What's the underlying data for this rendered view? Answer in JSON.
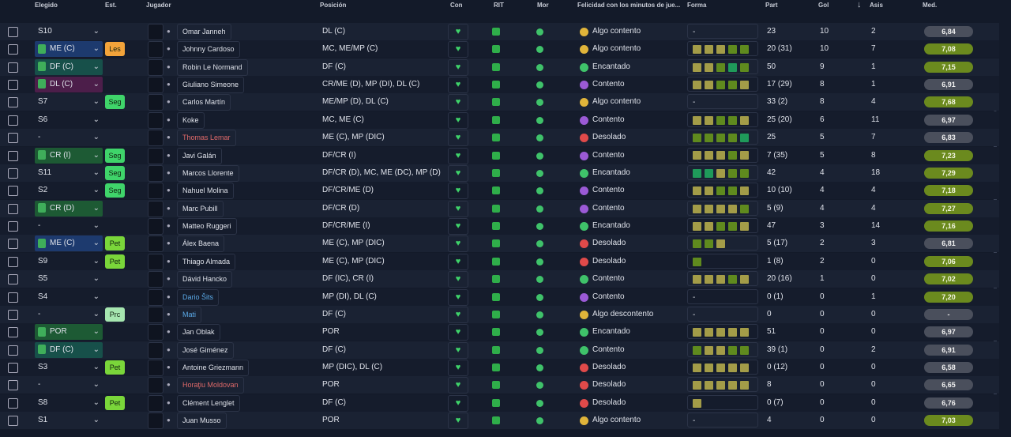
{
  "headers": [
    "Elegido",
    "Est.",
    "Jugador",
    "Posición",
    "Con",
    "RIT",
    "Mor",
    "Felicidad con los minutos de jue...",
    "Forma",
    "Part",
    "Gol",
    "Asis",
    "Med."
  ],
  "rows": [
    {
      "sel": "S10",
      "name": "Omar Janneh",
      "pos": "DL (C)",
      "fel": "Algo contento",
      "fel_color": "#e0b43a",
      "form": "-",
      "part": "23",
      "gol": 10,
      "asis": 2,
      "med": "6,84"
    },
    {
      "sel": "ME (C)",
      "sel_color": "#1d3a6e",
      "est": "Les",
      "est_color": "#f2a33a",
      "name": "Johnny Cardoso",
      "pos": "MC, ME/MP (C)",
      "fel": "Algo contento",
      "fel_color": "#e0b43a",
      "form": [
        "#a39c48",
        "#a39c48",
        "#a39c48",
        "#5f8a1e",
        "#5f8a1e"
      ],
      "part": "20 (31)",
      "gol": 10,
      "asis": 7,
      "med": "7,08"
    },
    {
      "sel": "DF (C)",
      "sel_color": "#17504a",
      "name": "Robin Le Normand",
      "pos": "DF (C)",
      "fel": "Encantado",
      "fel_color": "#3fc26a",
      "form": [
        "#a39c48",
        "#a39c48",
        "#5f8a1e",
        "#1f9a5a",
        "#5f8a1e"
      ],
      "part": "50",
      "gol": 9,
      "asis": 1,
      "med": "7,15"
    },
    {
      "sel": "DL (C)",
      "sel_color": "#4c1e4a",
      "name": "Giuliano Simeone",
      "pos": "CR/ME (D), MP (DI), DL (C)",
      "fel": "Contento",
      "fel_color": "#9b5ad6",
      "form": [
        "#a39c48",
        "#a39c48",
        "#5f8a1e",
        "#5f8a1e",
        "#a39c48"
      ],
      "part": "17 (29)",
      "gol": 8,
      "asis": 1,
      "med": "6,91"
    },
    {
      "sel": "S7",
      "est": "Seg",
      "est_color": "#3fd46a",
      "name": "Carlos Martín",
      "pos": "ME/MP (D), DL (C)",
      "fel": "Algo contento",
      "fel_color": "#e0b43a",
      "form": "-",
      "part": "33 (2)",
      "gol": 8,
      "asis": 4,
      "med": "7,68"
    },
    {
      "sel": "S6",
      "name": "Koke",
      "pos": "MC, ME (C)",
      "fel": "Contento",
      "fel_color": "#9b5ad6",
      "form": [
        "#a39c48",
        "#a39c48",
        "#5f8a1e",
        "#5f8a1e",
        "#a39c48"
      ],
      "part": "25 (20)",
      "gol": 6,
      "asis": 11,
      "med": "6,97"
    },
    {
      "sel": "-",
      "name": "Thomas Lemar",
      "name_color": "#e06a6a",
      "pos": "ME (C), MP (DIC)",
      "fel": "Desolado",
      "fel_color": "#e04a4a",
      "form": [
        "#5f8a1e",
        "#5f8a1e",
        "#5f8a1e",
        "#5f8a1e",
        "#1f9a5a"
      ],
      "part": "25",
      "gol": 5,
      "asis": 7,
      "med": "6,83"
    },
    {
      "sel": "CR (I)",
      "sel_color": "#1d5a34",
      "est": "Seg",
      "est_color": "#3fd46a",
      "name": "Javi Galán",
      "pos": "DF/CR (I)",
      "fel": "Contento",
      "fel_color": "#9b5ad6",
      "form": [
        "#a39c48",
        "#a39c48",
        "#a39c48",
        "#5f8a1e",
        "#a39c48"
      ],
      "part": "7 (35)",
      "gol": 5,
      "asis": 8,
      "med": "7,23"
    },
    {
      "sel": "S11",
      "est": "Seg",
      "est_color": "#3fd46a",
      "name": "Marcos Llorente",
      "pos": "DF/CR (D), MC, ME (DC), MP (D)",
      "fel": "Encantado",
      "fel_color": "#3fc26a",
      "form": [
        "#1f9a5a",
        "#1f9a5a",
        "#a39c48",
        "#5f8a1e",
        "#5f8a1e"
      ],
      "part": "42",
      "gol": 4,
      "asis": 18,
      "med": "7,29"
    },
    {
      "sel": "S2",
      "est": "Seg",
      "est_color": "#3fd46a",
      "name": "Nahuel Molina",
      "pos": "DF/CR/ME (D)",
      "fel": "Contento",
      "fel_color": "#9b5ad6",
      "form": [
        "#a39c48",
        "#a39c48",
        "#5f8a1e",
        "#5f8a1e",
        "#a39c48"
      ],
      "part": "10 (10)",
      "gol": 4,
      "asis": 4,
      "med": "7,18"
    },
    {
      "sel": "CR (D)",
      "sel_color": "#1d5a34",
      "name": "Marc Pubill",
      "pos": "DF/CR (D)",
      "fel": "Contento",
      "fel_color": "#9b5ad6",
      "form": [
        "#a39c48",
        "#a39c48",
        "#a39c48",
        "#a39c48",
        "#5f8a1e"
      ],
      "part": "5 (9)",
      "gol": 4,
      "asis": 4,
      "med": "7,27"
    },
    {
      "sel": "-",
      "name": "Matteo Ruggeri",
      "pos": "DF/CR/ME (I)",
      "fel": "Encantado",
      "fel_color": "#3fc26a",
      "form": [
        "#a39c48",
        "#a39c48",
        "#5f8a1e",
        "#5f8a1e",
        "#a39c48"
      ],
      "part": "47",
      "gol": 3,
      "asis": 14,
      "med": "7,16"
    },
    {
      "sel": "ME (C)",
      "sel_color": "#1d3a6e",
      "est": "Pet",
      "est_color": "#7ad63a",
      "name": "Álex Baena",
      "pos": "ME (C), MP (DIC)",
      "fel": "Desolado",
      "fel_color": "#e04a4a",
      "form": [
        "#5f8a1e",
        "#5f8a1e",
        "#a39c48"
      ],
      "part": "5 (17)",
      "gol": 2,
      "asis": 3,
      "med": "6,81"
    },
    {
      "sel": "S9",
      "est": "Pet",
      "est_color": "#7ad63a",
      "name": "Thiago Almada",
      "pos": "ME (C), MP (DIC)",
      "fel": "Desolado",
      "fel_color": "#e04a4a",
      "form": [
        "#5f8a1e"
      ],
      "part": "1 (8)",
      "gol": 2,
      "asis": 0,
      "med": "7,06"
    },
    {
      "sel": "S5",
      "name": "Dávid Hancko",
      "pos": "DF (IC), CR (I)",
      "fel": "Contento",
      "fel_color": "#3fc26a",
      "form": [
        "#a39c48",
        "#a39c48",
        "#a39c48",
        "#5f8a1e",
        "#a39c48"
      ],
      "part": "20 (16)",
      "gol": 1,
      "asis": 0,
      "med": "7,02"
    },
    {
      "sel": "S4",
      "name": "Dario Šits",
      "name_color": "#5aa8e6",
      "pos": "MP (DI), DL (C)",
      "fel": "Contento",
      "fel_color": "#9b5ad6",
      "form": "-",
      "part": "0 (1)",
      "gol": 0,
      "asis": 1,
      "med": "7,20"
    },
    {
      "sel": "-",
      "est": "Prc",
      "est_color": "#a6e6b0",
      "name": "Mati",
      "name_color": "#5aa8e6",
      "pos": "DF (C)",
      "fel": "Algo descontento",
      "fel_color": "#e0b43a",
      "form": "-",
      "part": "0",
      "gol": 0,
      "asis": 0,
      "med": "-"
    },
    {
      "sel": "POR",
      "sel_color": "#1d5a34",
      "name": "Jan Oblak",
      "pos": "POR",
      "fel": "Encantado",
      "fel_color": "#3fc26a",
      "form": [
        "#a39c48",
        "#a39c48",
        "#a39c48",
        "#a39c48",
        "#a39c48"
      ],
      "part": "51",
      "gol": 0,
      "asis": 0,
      "med": "6,97"
    },
    {
      "sel": "DF (C)",
      "sel_color": "#17504a",
      "name": "José Giménez",
      "pos": "DF (C)",
      "fel": "Contento",
      "fel_color": "#3fc26a",
      "form": [
        "#5f8a1e",
        "#a39c48",
        "#a39c48",
        "#5f8a1e",
        "#5f8a1e"
      ],
      "part": "39 (1)",
      "gol": 0,
      "asis": 2,
      "med": "6,91"
    },
    {
      "sel": "S3",
      "est": "Pet",
      "est_color": "#7ad63a",
      "name": "Antoine Griezmann",
      "pos": "MP (DIC), DL (C)",
      "fel": "Desolado",
      "fel_color": "#e04a4a",
      "form": [
        "#a39c48",
        "#a39c48",
        "#a39c48",
        "#a39c48",
        "#a39c48"
      ],
      "part": "0 (12)",
      "gol": 0,
      "asis": 0,
      "med": "6,58"
    },
    {
      "sel": "-",
      "name": "Horaţiu Moldovan",
      "name_color": "#e06a6a",
      "pos": "POR",
      "fel": "Desolado",
      "fel_color": "#e04a4a",
      "form": [
        "#a39c48",
        "#a39c48",
        "#a39c48",
        "#a39c48",
        "#a39c48"
      ],
      "part": "8",
      "gol": 0,
      "asis": 0,
      "med": "6,65"
    },
    {
      "sel": "S8",
      "est": "Pet",
      "est_color": "#7ad63a",
      "name": "Clément Lenglet",
      "pos": "DF (C)",
      "fel": "Desolado",
      "fel_color": "#e04a4a",
      "form": [
        "#a39c48"
      ],
      "part": "0 (7)",
      "gol": 0,
      "asis": 0,
      "med": "6,76"
    },
    {
      "sel": "S1",
      "name": "Juan Musso",
      "pos": "POR",
      "fel": "Algo contento",
      "fel_color": "#e0b43a",
      "form": "-",
      "part": "4",
      "gol": 0,
      "asis": 0,
      "med": "7,03"
    }
  ]
}
